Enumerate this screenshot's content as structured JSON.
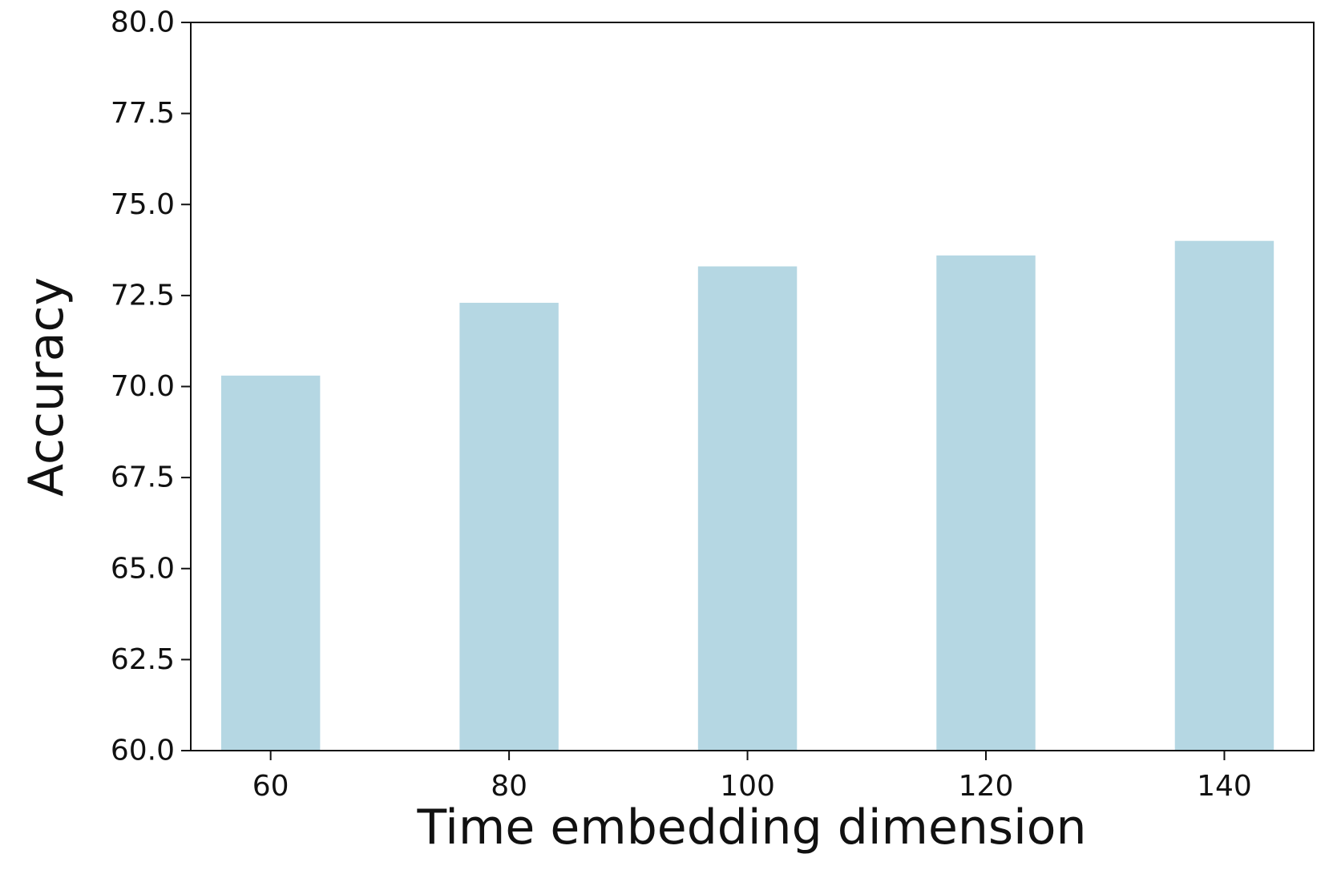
{
  "chart_data": {
    "type": "bar",
    "categories": [
      "60",
      "80",
      "100",
      "120",
      "140"
    ],
    "x": [
      60,
      80,
      100,
      120,
      140
    ],
    "values": [
      70.3,
      72.3,
      73.3,
      73.6,
      74.0
    ],
    "title": "",
    "xlabel": "Time embedding dimension",
    "ylabel": "Accuracy",
    "ylim": [
      60.0,
      80.0
    ],
    "y_ticks": [
      "60.0",
      "62.5",
      "65.0",
      "67.5",
      "70.0",
      "72.5",
      "75.0",
      "77.5",
      "80.0"
    ],
    "x_ticks": [
      "60",
      "80",
      "100",
      "120",
      "140"
    ],
    "grid": false,
    "legend": "none",
    "bar_color": "#b5d7e3",
    "axis_color": "#111111"
  }
}
